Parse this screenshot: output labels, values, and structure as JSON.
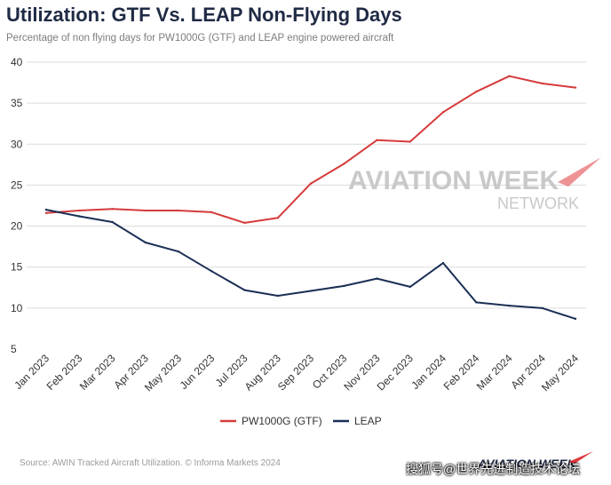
{
  "header": {
    "title": "Utilization: GTF Vs. LEAP Non-Flying Days",
    "subtitle": "Percentage of non flying days for PW1000G (GTF) and LEAP engine powered aircraft"
  },
  "logo": {
    "main": "AVIATION WEEK",
    "sub": "NETWORK",
    "footer_logo": "AVIATION WEEK",
    "accent_color": "#e03a3e"
  },
  "footer": {
    "source": "Source: AWIN Tracked Aircraft Utilization. © Informa Markets 2024",
    "watermark": "搜狐号@世界先进制造技术论坛"
  },
  "chart_data": {
    "type": "line",
    "title": "Utilization: GTF Vs. LEAP Non-Flying Days",
    "subtitle": "Percentage of non flying days for PW1000G (GTF) and LEAP engine powered aircraft",
    "xlabel": "",
    "ylabel": "",
    "categories": [
      "Jan 2023",
      "Feb 2023",
      "Mar 2023",
      "Apr 2023",
      "May 2023",
      "Jun 2023",
      "Jul 2023",
      "Aug 2023",
      "Sep 2023",
      "Oct 2023",
      "Nov 2023",
      "Dec 2023",
      "Jan 2024",
      "Feb 2024",
      "Mar 2024",
      "Apr 2024",
      "May 2024"
    ],
    "ylim": [
      5,
      40
    ],
    "yticks": [
      5,
      10,
      15,
      20,
      25,
      30,
      35,
      40
    ],
    "grid": true,
    "legend_position": "bottom-center",
    "series": [
      {
        "name": "PW1000G (GTF)",
        "color": "#d63b3b",
        "values": [
          21.6,
          21.9,
          22.1,
          21.9,
          21.9,
          21.7,
          20.4,
          21.0,
          25.2,
          27.6,
          30.5,
          30.3,
          33.9,
          36.4,
          38.3,
          37.4,
          36.9
        ]
      },
      {
        "name": "LEAP",
        "color": "#1b2f56",
        "values": [
          22.0,
          21.2,
          20.5,
          18.0,
          16.9,
          14.5,
          12.2,
          11.5,
          12.1,
          12.7,
          13.6,
          12.6,
          15.5,
          10.7,
          10.3,
          10.0,
          8.7
        ]
      }
    ]
  }
}
